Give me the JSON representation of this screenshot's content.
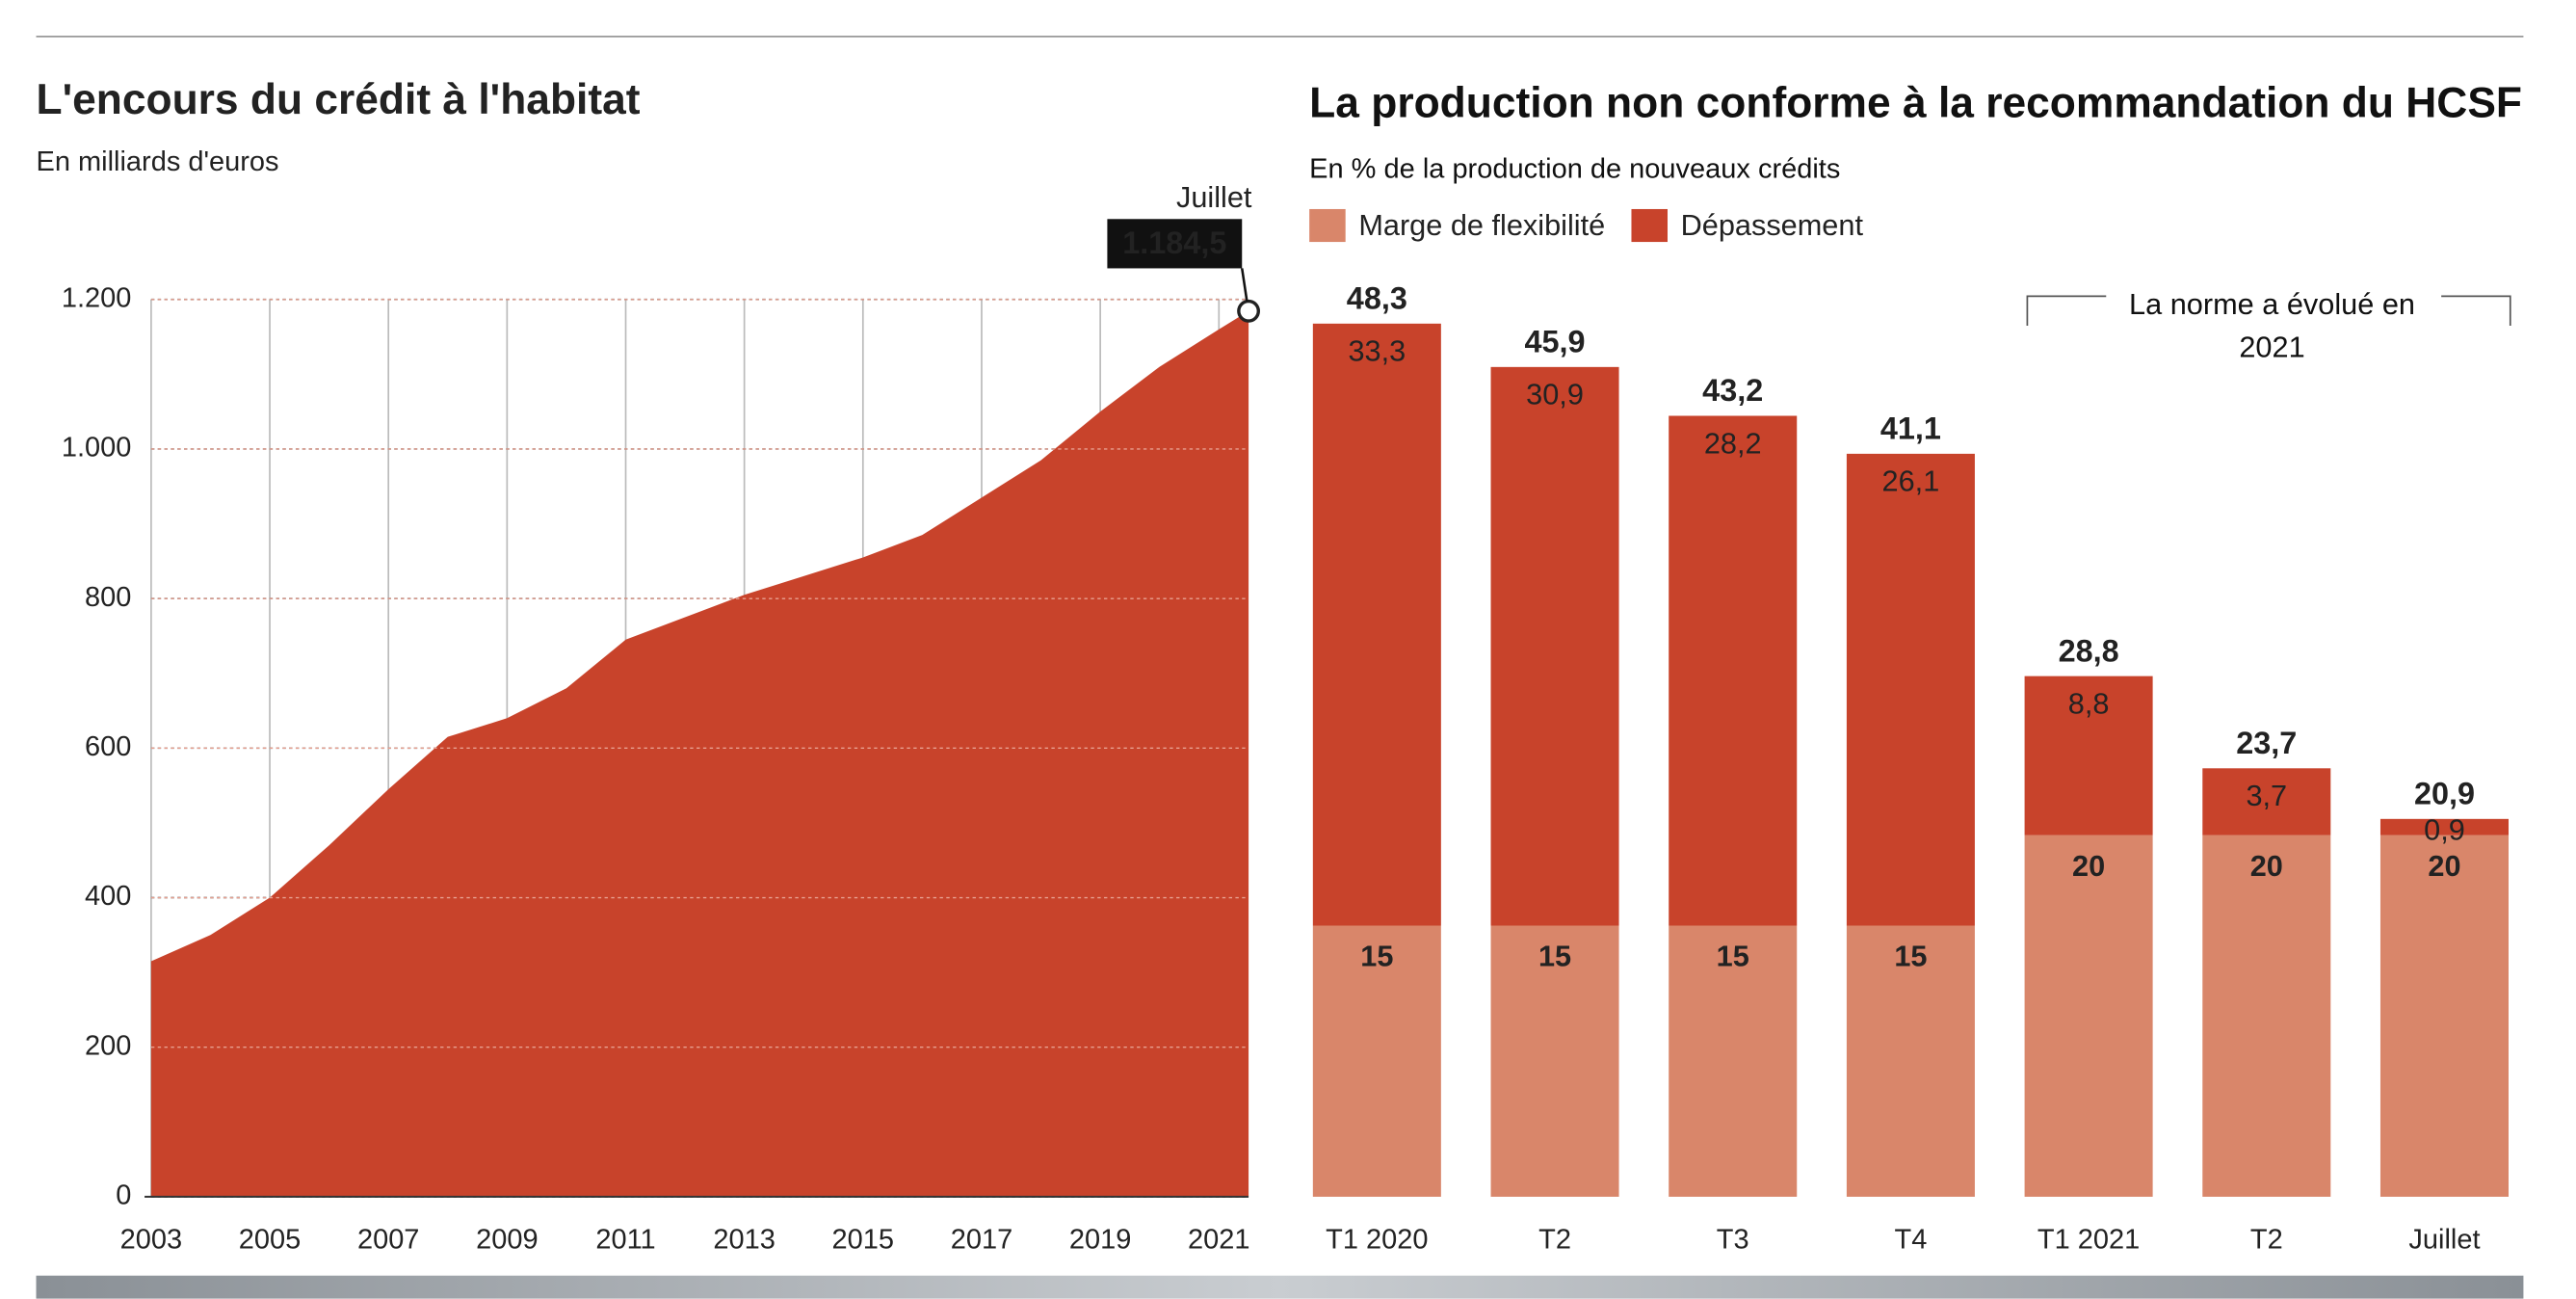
{
  "chart_data": [
    {
      "type": "area",
      "title": "L'encours du crédit à l'habitat",
      "subtitle": "En milliards d'euros",
      "x": [
        2003,
        2004,
        2005,
        2006,
        2007,
        2008,
        2009,
        2010,
        2011,
        2012,
        2013,
        2014,
        2015,
        2016,
        2017,
        2018,
        2019,
        2020,
        2021,
        2021.5
      ],
      "values": [
        315,
        350,
        400,
        470,
        545,
        615,
        640,
        680,
        745,
        775,
        805,
        830,
        855,
        885,
        935,
        985,
        1050,
        1110,
        1160,
        1184.5
      ],
      "value_labels": [
        null,
        null,
        null,
        null,
        null,
        null,
        null,
        null,
        null,
        null,
        null,
        null,
        null,
        null,
        null,
        null,
        null,
        null,
        null,
        "1.184,5"
      ],
      "annotation": "Juillet",
      "color": "#c8432b",
      "xlim": [
        2003,
        2021.5
      ],
      "xticks": [
        2003,
        2005,
        2007,
        2009,
        2011,
        2013,
        2015,
        2017,
        2019,
        2021
      ],
      "ylim": [
        0,
        1200
      ],
      "yticks": [
        0,
        200,
        400,
        600,
        800,
        {
          "value": 1000,
          "label": "1.000"
        },
        {
          "value": 1200,
          "label": "1.200"
        }
      ],
      "grid": true
    },
    {
      "type": "stacked_bar",
      "title": "La production non conforme à la recommandation du HCSF",
      "subtitle": "En % de la production de nouveaux crédits",
      "categories": [
        "T1 2020",
        "T2",
        "T3",
        "T4",
        "T1 2021",
        "T2",
        "Juillet"
      ],
      "series": [
        {
          "name": "Marge de flexibilité",
          "color": "#d9866a",
          "values": [
            15,
            15,
            15,
            15,
            20,
            20,
            20
          ]
        },
        {
          "name": "Dépassement",
          "color": "#c8432b",
          "values": [
            33.3,
            30.9,
            28.2,
            26.1,
            8.8,
            3.7,
            0.9
          ],
          "value_labels": [
            "33,3",
            "30,9",
            "28,2",
            "26,1",
            "8,8",
            "3,7",
            "0,9"
          ]
        }
      ],
      "totals": [
        48.3,
        45.9,
        43.2,
        41.1,
        28.8,
        23.7,
        20.9
      ],
      "total_labels": [
        "48,3",
        "45,9",
        "43,2",
        "41,1",
        "28,8",
        "23,7",
        "20,9"
      ],
      "annotation": "La norme a évolué en 2021",
      "ylim": [
        0,
        50
      ]
    }
  ]
}
